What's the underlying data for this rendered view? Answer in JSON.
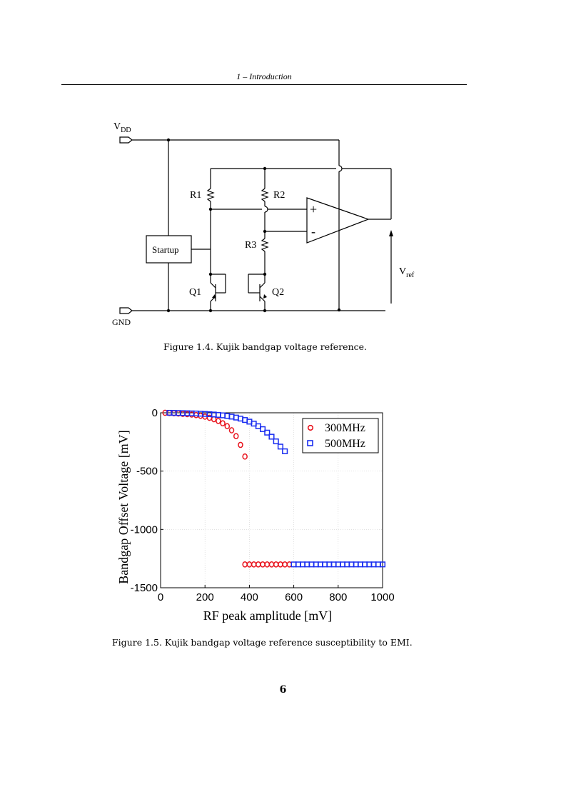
{
  "header": {
    "running_title": "1 – Introduction"
  },
  "figure1": {
    "caption": "Figure 1.4.    Kujik bandgap voltage reference.",
    "labels": {
      "vdd": "V",
      "vdd_sub": "DD",
      "gnd": "GND",
      "r1": "R1",
      "r2": "R2",
      "r3": "R3",
      "q1": "Q1",
      "q2": "Q2",
      "startup": "Startup",
      "plus": "+",
      "minus": "-",
      "vref": "V",
      "vref_sub": "ref"
    }
  },
  "figure2": {
    "caption": "Figure 1.5.    Kujik bandgap voltage reference susceptibility to EMI."
  },
  "chart_data": {
    "type": "scatter",
    "xlabel": "RF peak amplitude [mV]",
    "ylabel": "Bandgap Offset Voltage [mV]",
    "xlim": [
      0,
      1000
    ],
    "ylim": [
      -1500,
      0
    ],
    "xticks": [
      "0",
      "200",
      "400",
      "600",
      "800",
      "1000"
    ],
    "yticks": [
      "0",
      "-500",
      "-1000",
      "-1500"
    ],
    "grid": true,
    "legend_position": "top-right",
    "series": [
      {
        "name": "300MHz",
        "marker": "circle",
        "color": "#e8141e",
        "points": [
          [
            20,
            0
          ],
          [
            40,
            -2
          ],
          [
            60,
            -4
          ],
          [
            80,
            -6
          ],
          [
            100,
            -9
          ],
          [
            120,
            -12
          ],
          [
            140,
            -15
          ],
          [
            160,
            -20
          ],
          [
            180,
            -26
          ],
          [
            200,
            -33
          ],
          [
            220,
            -43
          ],
          [
            240,
            -55
          ],
          [
            260,
            -70
          ],
          [
            280,
            -90
          ],
          [
            300,
            -115
          ],
          [
            320,
            -150
          ],
          [
            340,
            -200
          ],
          [
            360,
            -275
          ],
          [
            380,
            -375
          ],
          [
            380,
            -1300
          ],
          [
            400,
            -1300
          ],
          [
            420,
            -1300
          ],
          [
            440,
            -1300
          ],
          [
            460,
            -1300
          ],
          [
            480,
            -1300
          ],
          [
            500,
            -1300
          ],
          [
            520,
            -1300
          ],
          [
            540,
            -1300
          ],
          [
            560,
            -1300
          ],
          [
            580,
            -1300
          ]
        ]
      },
      {
        "name": "500MHz",
        "marker": "square",
        "color": "#1a2ef0",
        "points": [
          [
            40,
            0
          ],
          [
            60,
            -1
          ],
          [
            80,
            -2
          ],
          [
            100,
            -3
          ],
          [
            120,
            -4
          ],
          [
            140,
            -5
          ],
          [
            160,
            -6
          ],
          [
            180,
            -8
          ],
          [
            200,
            -10
          ],
          [
            220,
            -12
          ],
          [
            240,
            -15
          ],
          [
            260,
            -18
          ],
          [
            280,
            -22
          ],
          [
            300,
            -27
          ],
          [
            320,
            -33
          ],
          [
            340,
            -41
          ],
          [
            360,
            -50
          ],
          [
            380,
            -62
          ],
          [
            400,
            -76
          ],
          [
            420,
            -93
          ],
          [
            440,
            -115
          ],
          [
            460,
            -140
          ],
          [
            480,
            -170
          ],
          [
            500,
            -205
          ],
          [
            520,
            -245
          ],
          [
            540,
            -290
          ],
          [
            560,
            -330
          ],
          [
            600,
            -1300
          ],
          [
            620,
            -1300
          ],
          [
            640,
            -1300
          ],
          [
            660,
            -1300
          ],
          [
            680,
            -1300
          ],
          [
            700,
            -1300
          ],
          [
            720,
            -1300
          ],
          [
            740,
            -1300
          ],
          [
            760,
            -1300
          ],
          [
            780,
            -1300
          ],
          [
            800,
            -1300
          ],
          [
            820,
            -1300
          ],
          [
            840,
            -1300
          ],
          [
            860,
            -1300
          ],
          [
            880,
            -1300
          ],
          [
            900,
            -1300
          ],
          [
            920,
            -1300
          ],
          [
            940,
            -1300
          ],
          [
            960,
            -1300
          ],
          [
            980,
            -1300
          ],
          [
            1000,
            -1300
          ]
        ]
      }
    ]
  }
}
